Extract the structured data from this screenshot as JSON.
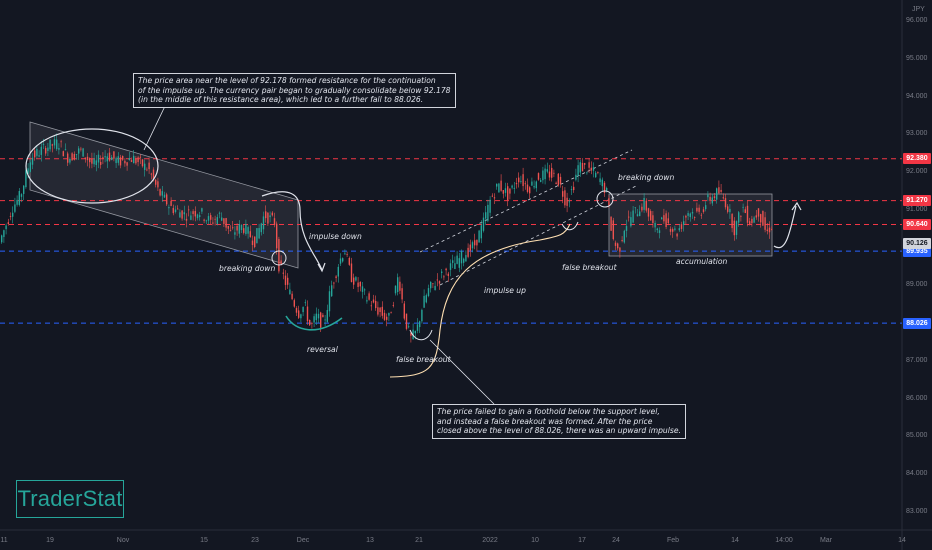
{
  "chart_data": {
    "type": "candlestick",
    "currency_label": "JPY",
    "ylim": [
      82.7,
      96.6
    ],
    "y_ticks": [
      "96.000",
      "95.000",
      "94.000",
      "93.000",
      "92.000",
      "91.000",
      "90.000",
      "89.000",
      "88.000",
      "87.000",
      "86.000",
      "85.000",
      "84.000",
      "83.000"
    ],
    "x_ticks": [
      "11",
      "19",
      "Nov",
      "15",
      "23",
      "Dec",
      "13",
      "21",
      "2022",
      "10",
      "17",
      "24",
      "Feb",
      "14",
      "14:00",
      "Mar",
      "14"
    ],
    "price_series": [
      [
        0,
        90.1
      ],
      [
        14,
        91.1
      ],
      [
        22,
        91.4
      ],
      [
        32,
        92.4
      ],
      [
        48,
        92.7
      ],
      [
        60,
        92.8
      ],
      [
        70,
        92.4
      ],
      [
        82,
        92.6
      ],
      [
        95,
        92.2
      ],
      [
        108,
        92.5
      ],
      [
        120,
        92.3
      ],
      [
        134,
        92.4
      ],
      [
        150,
        92.1
      ],
      [
        160,
        91.5
      ],
      [
        172,
        91.1
      ],
      [
        186,
        90.9
      ],
      [
        200,
        91.0
      ],
      [
        212,
        90.7
      ],
      [
        222,
        90.9
      ],
      [
        232,
        90.4
      ],
      [
        244,
        90.6
      ],
      [
        256,
        90.2
      ],
      [
        266,
        90.9
      ],
      [
        276,
        90.7
      ],
      [
        280,
        89.6
      ],
      [
        290,
        88.9
      ],
      [
        300,
        88.3
      ],
      [
        306,
        88.5
      ],
      [
        312,
        87.9
      ],
      [
        318,
        88.2
      ],
      [
        325,
        88.0
      ],
      [
        333,
        89.0
      ],
      [
        340,
        89.6
      ],
      [
        346,
        90.0
      ],
      [
        352,
        89.3
      ],
      [
        360,
        89.0
      ],
      [
        368,
        88.7
      ],
      [
        378,
        88.4
      ],
      [
        390,
        88.1
      ],
      [
        396,
        88.8
      ],
      [
        400,
        89.3
      ],
      [
        406,
        88.2
      ],
      [
        412,
        87.6
      ],
      [
        418,
        87.8
      ],
      [
        424,
        88.5
      ],
      [
        430,
        88.9
      ],
      [
        440,
        89.2
      ],
      [
        452,
        89.5
      ],
      [
        464,
        89.8
      ],
      [
        476,
        90.1
      ],
      [
        484,
        90.6
      ],
      [
        492,
        91.3
      ],
      [
        500,
        91.7
      ],
      [
        510,
        91.4
      ],
      [
        520,
        91.9
      ],
      [
        530,
        91.6
      ],
      [
        540,
        91.9
      ],
      [
        550,
        92.0
      ],
      [
        560,
        91.8
      ],
      [
        568,
        91.2
      ],
      [
        574,
        91.6
      ],
      [
        580,
        92.2
      ],
      [
        590,
        92.1
      ],
      [
        600,
        91.9
      ],
      [
        608,
        91.5
      ],
      [
        614,
        90.3
      ],
      [
        620,
        89.9
      ],
      [
        626,
        90.6
      ],
      [
        634,
        90.9
      ],
      [
        646,
        91.2
      ],
      [
        656,
        90.5
      ],
      [
        666,
        90.8
      ],
      [
        678,
        90.4
      ],
      [
        690,
        91.0
      ],
      [
        700,
        90.9
      ],
      [
        710,
        91.3
      ],
      [
        720,
        91.5
      ],
      [
        728,
        91.2
      ],
      [
        736,
        90.5
      ],
      [
        744,
        91.1
      ],
      [
        752,
        90.7
      ],
      [
        760,
        91.0
      ],
      [
        768,
        90.4
      ],
      [
        772,
        90.6
      ]
    ],
    "levels": [
      {
        "label": "92.380",
        "color": "#f23645"
      },
      {
        "label": "91.270",
        "color": "#f23645"
      },
      {
        "label": "90.640",
        "color": "#f23645"
      },
      {
        "label": "89.935",
        "color": "#2962ff"
      },
      {
        "label": "88.026",
        "color": "#2962ff"
      }
    ],
    "level_values": [
      92.38,
      91.27,
      90.64,
      89.935,
      88.026
    ],
    "current_price": "90.126",
    "annotations": {
      "note_top": "The price area near the level of 92.178 formed resistance for the continuation\nof the impulse up. The currency pair began to gradually consolidate below 92.178\n(in the middle of this resistance area), which led to a further fall to 88.026.",
      "note_bottom": "The price failed to gain a foothold below the support level,\nand instead a false breakout was formed. After the price\nclosed above the level of 88.026, there was an upward impulse.",
      "breaking_down_1": "breaking down",
      "impulse_down": "impulse down",
      "reversal": "reversal",
      "false_breakout_1": "false breakout",
      "impulse_up": "impulse up",
      "false_breakout_2": "false breakout",
      "breaking_down_2": "breaking down",
      "accumulation": "accumulation"
    },
    "colors": {
      "up": "#26a69a",
      "down": "#ef5350",
      "background": "#131722",
      "grid": "#1e222d",
      "axis_text": "#787b86"
    }
  },
  "brand": {
    "logo_text": "TraderStat",
    "color": "#26a69a"
  }
}
